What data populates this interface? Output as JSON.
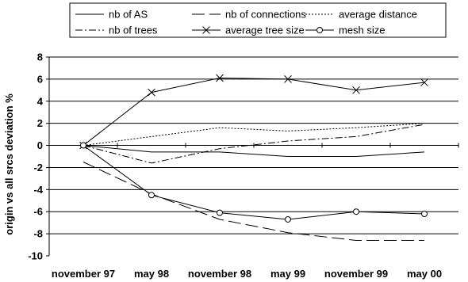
{
  "chart_data": {
    "type": "line",
    "title": "",
    "xlabel": "",
    "ylabel": "origin vs all srcs deviation %",
    "categories": [
      "november 97",
      "may 98",
      "november 98",
      "may 99",
      "november 99",
      "may 00"
    ],
    "ylim": [
      -10,
      8
    ],
    "yticks": [
      8,
      6,
      4,
      2,
      0,
      -2,
      -4,
      -6,
      -8,
      -10
    ],
    "grid": "horizontal",
    "legend_position": "top",
    "series": [
      {
        "name": "nb of AS",
        "style": "solid",
        "marker": "none",
        "values": [
          0,
          -0.6,
          -0.6,
          -1.0,
          -1.0,
          -0.6
        ]
      },
      {
        "name": "nb of connections",
        "style": "long-dash",
        "marker": "none",
        "values": [
          -1.5,
          -4.4,
          -6.7,
          -7.9,
          -8.6,
          -8.6
        ]
      },
      {
        "name": "average distance",
        "style": "dotted",
        "marker": "none",
        "values": [
          0,
          0.8,
          1.6,
          1.3,
          1.6,
          2.0
        ]
      },
      {
        "name": "nb of trees",
        "style": "dash-dot",
        "marker": "none",
        "values": [
          0,
          -1.6,
          -0.3,
          0.4,
          0.8,
          1.9
        ]
      },
      {
        "name": "average tree size",
        "style": "solid",
        "marker": "x",
        "values": [
          0,
          4.8,
          6.1,
          6.0,
          5.0,
          5.7
        ]
      },
      {
        "name": "mesh size",
        "style": "solid",
        "marker": "circle",
        "values": [
          0,
          -4.5,
          -6.1,
          -6.7,
          -6.0,
          -6.2
        ]
      }
    ]
  }
}
